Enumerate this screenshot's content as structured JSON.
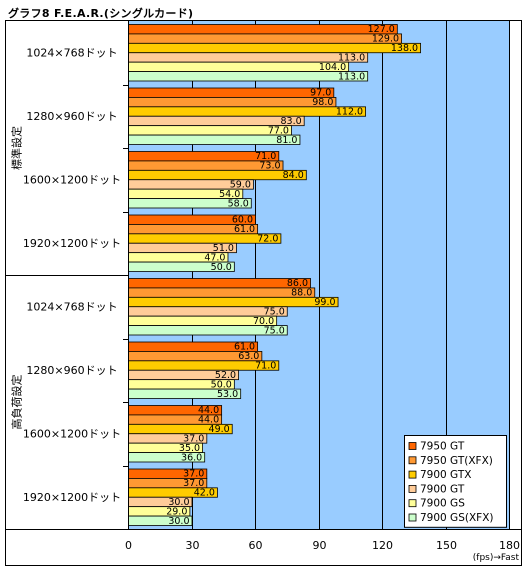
{
  "title": "グラフ8 F.E.A.R.(シングルカード)",
  "chart_data": {
    "type": "bar",
    "orientation": "horizontal",
    "xlim": [
      0,
      180
    ],
    "x_ticks": [
      "0",
      "30",
      "60",
      "90",
      "120",
      "150",
      "180"
    ],
    "x_unit": "(fps)→Fast",
    "grid": true,
    "legend_position": "bottom-right",
    "groups": [
      {
        "label": "標準設定",
        "categories": [
          {
            "label": "1024×768ドット",
            "values": [
              127.0,
              129.0,
              138.0,
              113.0,
              104.0,
              113.0
            ]
          },
          {
            "label": "1280×960ドット",
            "values": [
              97.0,
              98.0,
              112.0,
              83.0,
              77.0,
              81.0
            ]
          },
          {
            "label": "1600×1200ドット",
            "values": [
              71.0,
              73.0,
              84.0,
              59.0,
              54.0,
              58.0
            ]
          },
          {
            "label": "1920×1200ドット",
            "values": [
              60.0,
              61.0,
              72.0,
              51.0,
              47.0,
              50.0
            ]
          }
        ]
      },
      {
        "label": "高負荷設定",
        "categories": [
          {
            "label": "1024×768ドット",
            "values": [
              86.0,
              88.0,
              99.0,
              75.0,
              70.0,
              75.0
            ]
          },
          {
            "label": "1280×960ドット",
            "values": [
              61.0,
              63.0,
              71.0,
              52.0,
              50.0,
              53.0
            ]
          },
          {
            "label": "1600×1200ドット",
            "values": [
              44.0,
              44.0,
              49.0,
              37.0,
              35.0,
              36.0
            ]
          },
          {
            "label": "1920×1200ドット",
            "values": [
              37.0,
              37.0,
              42.0,
              30.0,
              29.0,
              30.0
            ]
          }
        ]
      }
    ],
    "series": [
      {
        "name": "7950 GT",
        "color": "#ff6600"
      },
      {
        "name": "7950 GT(XFX)",
        "color": "#ff9933"
      },
      {
        "name": "7900 GTX",
        "color": "#ffcc00"
      },
      {
        "name": "7900 GT",
        "color": "#ffcc99"
      },
      {
        "name": "7900 GS",
        "color": "#ffff99"
      },
      {
        "name": "7900 GS(XFX)",
        "color": "#ccffcc"
      }
    ],
    "plot_background": "#99ccff"
  }
}
